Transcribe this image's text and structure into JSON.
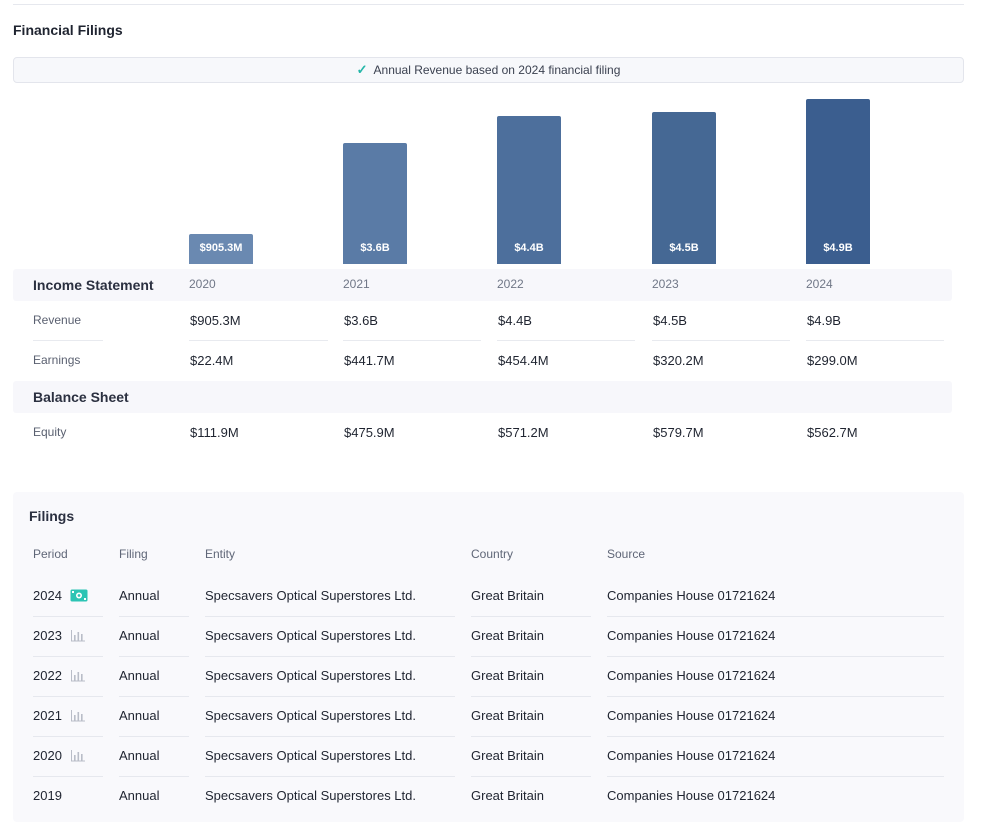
{
  "page_title": "Financial Filings",
  "banner": {
    "check_icon": "check-icon",
    "text": "Annual Revenue based on 2024 financial filing"
  },
  "chart_data": {
    "type": "bar",
    "categories": [
      "2020",
      "2021",
      "2022",
      "2023",
      "2024"
    ],
    "values": [
      905.3,
      3600,
      4400,
      4500,
      4900
    ],
    "value_labels": [
      "$905.3M",
      "$3.6B",
      "$4.4B",
      "$4.5B",
      "$4.9B"
    ],
    "unit": "$M",
    "bar_colors": [
      "#6a89b1",
      "#5a7ba6",
      "#4d6f9c",
      "#456894",
      "#3b5e8f"
    ]
  },
  "income_statement": {
    "title": "Income Statement",
    "years": [
      "2020",
      "2021",
      "2022",
      "2023",
      "2024"
    ],
    "rows": [
      {
        "label": "Revenue",
        "values": [
          "$905.3M",
          "$3.6B",
          "$4.4B",
          "$4.5B",
          "$4.9B"
        ]
      },
      {
        "label": "Earnings",
        "values": [
          "$22.4M",
          "$441.7M",
          "$454.4M",
          "$320.2M",
          "$299.0M"
        ]
      }
    ]
  },
  "balance_sheet": {
    "title": "Balance Sheet",
    "rows": [
      {
        "label": "Equity",
        "values": [
          "$111.9M",
          "$475.9M",
          "$571.2M",
          "$579.7M",
          "$562.7M"
        ]
      }
    ]
  },
  "filings": {
    "title": "Filings",
    "columns": [
      "Period",
      "Filing",
      "Entity",
      "Country",
      "Source"
    ],
    "rows": [
      {
        "period": "2024",
        "icon": "money-icon",
        "filing": "Annual",
        "entity": "Specsavers Optical Superstores Ltd.",
        "country": "Great Britain",
        "source": "Companies House 01721624"
      },
      {
        "period": "2023",
        "icon": "bar-chart-icon",
        "filing": "Annual",
        "entity": "Specsavers Optical Superstores Ltd.",
        "country": "Great Britain",
        "source": "Companies House 01721624"
      },
      {
        "period": "2022",
        "icon": "bar-chart-icon",
        "filing": "Annual",
        "entity": "Specsavers Optical Superstores Ltd.",
        "country": "Great Britain",
        "source": "Companies House 01721624"
      },
      {
        "period": "2021",
        "icon": "bar-chart-icon",
        "filing": "Annual",
        "entity": "Specsavers Optical Superstores Ltd.",
        "country": "Great Britain",
        "source": "Companies House 01721624"
      },
      {
        "period": "2020",
        "icon": "bar-chart-icon",
        "filing": "Annual",
        "entity": "Specsavers Optical Superstores Ltd.",
        "country": "Great Britain",
        "source": "Companies House 01721624"
      },
      {
        "period": "2019",
        "icon": "",
        "filing": "Annual",
        "entity": "Specsavers Optical Superstores Ltd.",
        "country": "Great Britain",
        "source": "Companies House 01721624"
      }
    ]
  },
  "colors": {
    "accent_teal": "#24b6a8",
    "bar_blue": "#4d6f9c"
  }
}
